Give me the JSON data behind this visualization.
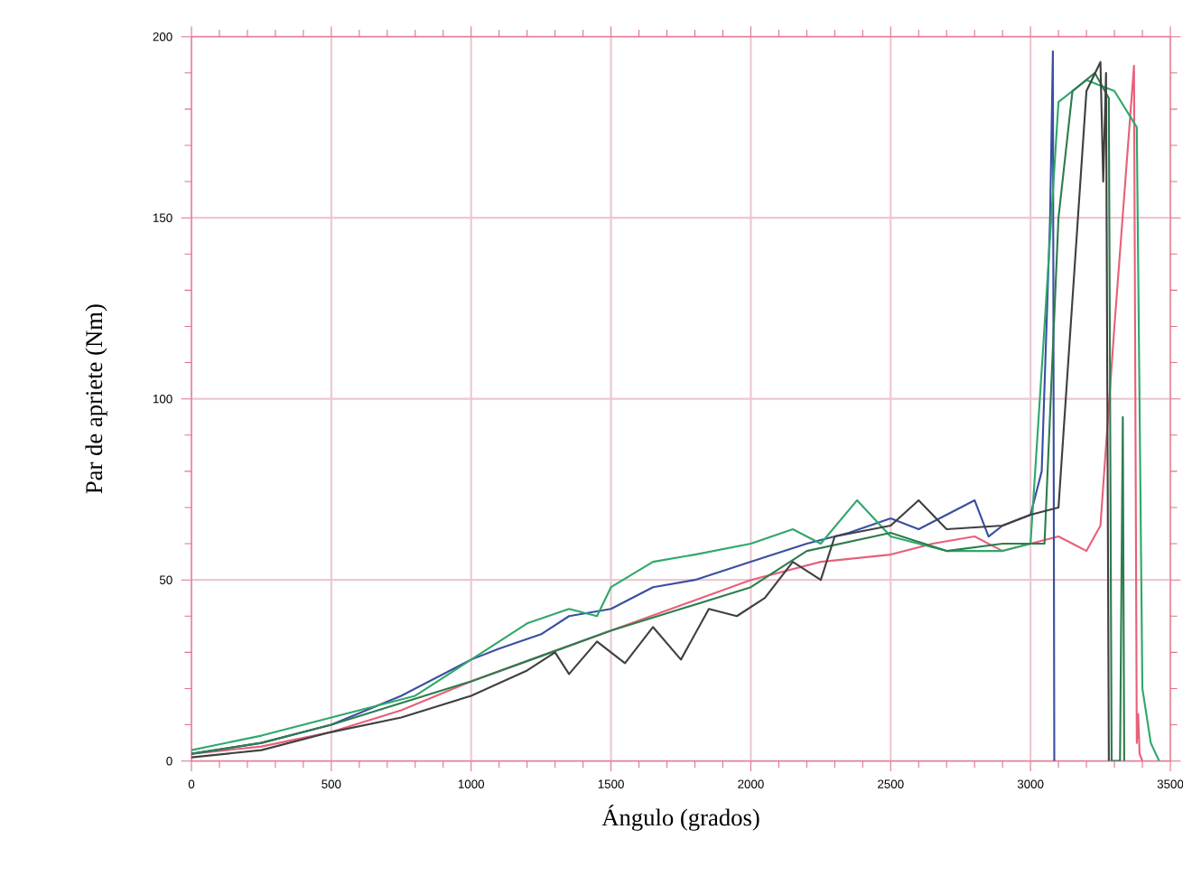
{
  "chart_data": {
    "type": "line",
    "xlabel": "Ángulo (grados)",
    "ylabel": "Par de apriete (Nm)",
    "xlim": [
      0,
      3500
    ],
    "ylim": [
      0,
      200
    ],
    "xticks": [
      0,
      500,
      1000,
      1500,
      2000,
      2500,
      3000,
      3500
    ],
    "yticks": [
      0,
      50,
      100,
      150,
      200
    ],
    "grid": true,
    "marker": "none",
    "line_style": "solid",
    "series": [
      {
        "color": "#e8607a",
        "x": [
          0,
          250,
          500,
          750,
          1000,
          1250,
          1500,
          1750,
          2000,
          2250,
          2500,
          2650,
          2800,
          2900,
          3000,
          3100,
          3150,
          3200,
          3250,
          3300,
          3370,
          3380,
          3385,
          3390,
          3400
        ],
        "values": [
          2,
          4,
          8,
          14,
          22,
          29,
          36,
          43,
          50,
          55,
          57,
          60,
          62,
          58,
          60,
          62,
          60,
          58,
          65,
          120,
          192,
          5,
          13,
          2,
          0
        ]
      },
      {
        "color": "#3a4fa0",
        "x": [
          0,
          250,
          500,
          750,
          1000,
          1100,
          1250,
          1350,
          1500,
          1650,
          1800,
          2000,
          2200,
          2350,
          2500,
          2600,
          2700,
          2800,
          2850,
          2900,
          3000,
          3040,
          3070,
          3080,
          3085
        ],
        "values": [
          2,
          5,
          10,
          18,
          28,
          31,
          35,
          40,
          42,
          48,
          50,
          55,
          60,
          63,
          67,
          64,
          68,
          72,
          62,
          65,
          68,
          80,
          150,
          196,
          0
        ]
      },
      {
        "color": "#2fa86a",
        "x": [
          0,
          250,
          500,
          800,
          1000,
          1200,
          1350,
          1450,
          1500,
          1650,
          1800,
          2000,
          2150,
          2250,
          2380,
          2500,
          2700,
          2900,
          3000,
          3050,
          3100,
          3200,
          3300,
          3380,
          3400,
          3430,
          3460
        ],
        "values": [
          3,
          7,
          12,
          18,
          28,
          38,
          42,
          40,
          48,
          55,
          57,
          60,
          64,
          60,
          72,
          62,
          58,
          58,
          60,
          120,
          182,
          188,
          185,
          175,
          20,
          5,
          0
        ]
      },
      {
        "color": "#2e7d4f",
        "x": [
          0,
          250,
          500,
          750,
          1000,
          1250,
          1500,
          1750,
          2000,
          2200,
          2500,
          2700,
          2900,
          3000,
          3050,
          3100,
          3150,
          3230,
          3280,
          3290,
          3320,
          3330,
          3335
        ],
        "values": [
          2,
          5,
          10,
          16,
          22,
          29,
          36,
          42,
          48,
          58,
          63,
          58,
          60,
          60,
          60,
          150,
          185,
          190,
          183,
          0,
          0,
          95,
          0
        ]
      },
      {
        "color": "#404040",
        "x": [
          0,
          250,
          500,
          750,
          1000,
          1200,
          1300,
          1350,
          1450,
          1550,
          1650,
          1750,
          1850,
          1950,
          2050,
          2150,
          2250,
          2300,
          2500,
          2600,
          2700,
          2900,
          3000,
          3100,
          3200,
          3250,
          3260,
          3270,
          3280
        ],
        "values": [
          1,
          3,
          8,
          12,
          18,
          25,
          30,
          24,
          33,
          27,
          37,
          28,
          42,
          40,
          45,
          55,
          50,
          62,
          65,
          72,
          64,
          65,
          68,
          70,
          185,
          193,
          160,
          190,
          0
        ]
      }
    ]
  }
}
